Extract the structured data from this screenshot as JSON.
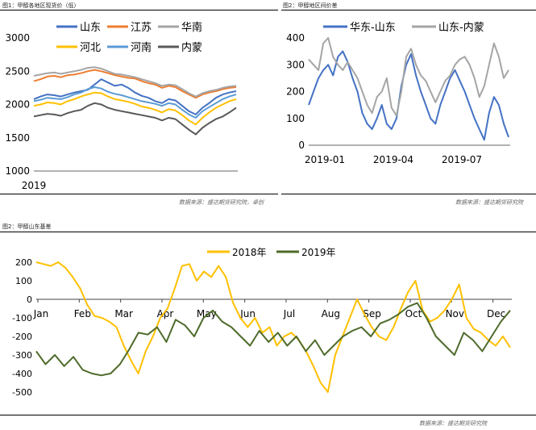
{
  "captions": {
    "fig1": "图1：甲醇各地区现货价（低）",
    "fig2": "图2：甲醇地区间价差",
    "fig3": "图2：甲醇山东基差",
    "source1": "数据来源：盛达期货研究院，卓创",
    "source2": "数据来源：盛达期货研究院",
    "source3": "数据来源：盛达期货研究院"
  },
  "colors": {
    "shandong": "#4472C4",
    "jiangsu": "#ED7D31",
    "huanan": "#A5A5A5",
    "hebei": "#FFC000",
    "henan": "#5B9BD5",
    "neimeng": "#595959",
    "huadong_shandong": "#4472C4",
    "shandong_neimeng": "#A5A5A5",
    "y2018": "#FFC000",
    "y2019": "#4E6B2A"
  },
  "chart_data": [
    {
      "id": "fig1",
      "type": "line",
      "xlabel": "",
      "ylabel": "",
      "ylim": [
        1000,
        3000
      ],
      "yticks": [
        "1000",
        "1500",
        "2000",
        "2500",
        "3000"
      ],
      "xticks": [
        "2019"
      ],
      "legend": "top",
      "grid": false,
      "series": [
        {
          "name": "山东",
          "key": "shandong",
          "values": [
            2080,
            2120,
            2150,
            2140,
            2120,
            2150,
            2180,
            2200,
            2220,
            2300,
            2380,
            2330,
            2280,
            2300,
            2250,
            2180,
            2130,
            2100,
            2050,
            2020,
            2080,
            2060,
            1980,
            1900,
            1850,
            1950,
            2020,
            2100,
            2150,
            2180,
            2200
          ]
        },
        {
          "name": "江苏",
          "key": "jiangsu",
          "values": [
            2350,
            2380,
            2420,
            2430,
            2410,
            2440,
            2450,
            2470,
            2500,
            2520,
            2500,
            2470,
            2440,
            2420,
            2400,
            2390,
            2350,
            2320,
            2300,
            2250,
            2280,
            2260,
            2200,
            2150,
            2100,
            2150,
            2180,
            2200,
            2230,
            2250,
            2260
          ]
        },
        {
          "name": "华南",
          "key": "huanan",
          "values": [
            2430,
            2450,
            2470,
            2480,
            2460,
            2480,
            2500,
            2520,
            2550,
            2560,
            2540,
            2500,
            2460,
            2450,
            2430,
            2410,
            2380,
            2350,
            2320,
            2280,
            2300,
            2290,
            2230,
            2170,
            2120,
            2170,
            2200,
            2220,
            2250,
            2270,
            2280
          ]
        },
        {
          "name": "河北",
          "key": "hebei",
          "values": [
            1980,
            2000,
            2030,
            2020,
            2000,
            2050,
            2080,
            2120,
            2150,
            2180,
            2170,
            2120,
            2080,
            2060,
            2040,
            2010,
            1970,
            1950,
            1920,
            1880,
            1930,
            1910,
            1840,
            1760,
            1700,
            1800,
            1880,
            1950,
            2000,
            2050,
            2080
          ]
        },
        {
          "name": "河南",
          "key": "henan",
          "values": [
            2050,
            2070,
            2100,
            2090,
            2080,
            2110,
            2150,
            2180,
            2230,
            2260,
            2240,
            2190,
            2160,
            2140,
            2110,
            2080,
            2050,
            2030,
            2010,
            1980,
            2020,
            2000,
            1920,
            1850,
            1800,
            1900,
            1960,
            2020,
            2080,
            2120,
            2150
          ]
        },
        {
          "name": "内蒙",
          "key": "neimeng",
          "values": [
            1820,
            1840,
            1860,
            1850,
            1830,
            1870,
            1900,
            1920,
            1980,
            2020,
            2000,
            1950,
            1920,
            1900,
            1880,
            1860,
            1840,
            1820,
            1800,
            1760,
            1800,
            1780,
            1700,
            1620,
            1550,
            1650,
            1720,
            1780,
            1820,
            1880,
            1950
          ]
        }
      ]
    },
    {
      "id": "fig2",
      "type": "line",
      "xlabel": "",
      "ylabel": "",
      "ylim": [
        0,
        400
      ],
      "yticks": [
        "0",
        "100",
        "200",
        "300",
        "400"
      ],
      "xticks": [
        "2019-01",
        "2019-04",
        "2019-07"
      ],
      "legend": "top",
      "grid": false,
      "series": [
        {
          "name": "华东-山东",
          "key": "huadong_shandong",
          "values": [
            150,
            200,
            250,
            280,
            300,
            260,
            330,
            350,
            310,
            250,
            200,
            120,
            80,
            60,
            100,
            150,
            80,
            60,
            100,
            220,
            300,
            340,
            260,
            200,
            150,
            100,
            80,
            150,
            200,
            250,
            280,
            240,
            200,
            150,
            100,
            60,
            20,
            120,
            180,
            150,
            80,
            30
          ]
        },
        {
          "name": "山东-内蒙",
          "key": "shandong_neimeng",
          "values": [
            320,
            300,
            280,
            380,
            400,
            330,
            300,
            280,
            310,
            280,
            250,
            200,
            150,
            120,
            180,
            200,
            250,
            140,
            110,
            200,
            330,
            360,
            300,
            260,
            240,
            200,
            160,
            200,
            240,
            260,
            300,
            320,
            330,
            300,
            250,
            180,
            220,
            300,
            380,
            330,
            250,
            280
          ]
        }
      ]
    },
    {
      "id": "fig3",
      "type": "line",
      "xlabel": "",
      "ylabel": "",
      "ylim": [
        -500,
        200
      ],
      "yticks": [
        "200",
        "100",
        "0",
        "-100",
        "-200",
        "-300",
        "-400",
        "-500"
      ],
      "xticks": [
        "Jan",
        "Feb",
        "Mar",
        "Apr",
        "May",
        "Jun",
        "Jul",
        "Aug",
        "Sep",
        "Oct",
        "Nov",
        "Dec"
      ],
      "legend": "top",
      "grid": false,
      "series": [
        {
          "name": "2018年",
          "key": "y2018",
          "values": [
            200,
            190,
            180,
            200,
            170,
            120,
            60,
            -30,
            -90,
            -100,
            -120,
            -150,
            -250,
            -330,
            -400,
            -280,
            -200,
            -100,
            -50,
            60,
            180,
            190,
            100,
            150,
            120,
            180,
            120,
            -20,
            -100,
            -150,
            -100,
            -180,
            -150,
            -250,
            -200,
            -180,
            -220,
            -280,
            -360,
            -450,
            -500,
            -300,
            -200,
            -100,
            0,
            -80,
            -150,
            -200,
            -220,
            -150,
            -50,
            40,
            100,
            -60,
            -120,
            -100,
            -60,
            0,
            80,
            -100,
            -160,
            -180,
            -220,
            -250,
            -200,
            -260
          ]
        },
        {
          "name": "2019年",
          "key": "y2019",
          "values": [
            -280,
            -350,
            -300,
            -360,
            -310,
            -380,
            -400,
            -410,
            -400,
            -350,
            -270,
            -180,
            -190,
            -150,
            -230,
            -110,
            -140,
            -200,
            -100,
            -60,
            -120,
            -150,
            -200,
            -250,
            -170,
            -230,
            -180,
            -250,
            -200,
            -280,
            -220,
            -300,
            -250,
            -200,
            -170,
            -150,
            -200,
            -130,
            -110,
            -80,
            -40,
            -20,
            -100,
            -200,
            -250,
            -300,
            -180,
            -220,
            -280,
            -200,
            -120,
            -60
          ]
        }
      ]
    }
  ]
}
